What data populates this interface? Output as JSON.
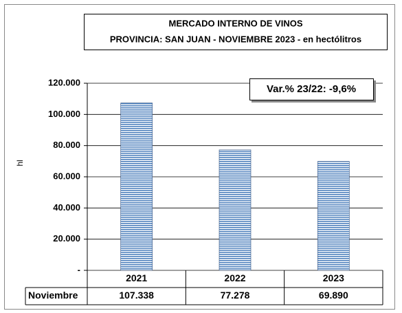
{
  "chart_data": {
    "type": "bar",
    "title": [
      "MERCADO INTERNO DE VINOS",
      "PROVINCIA: SAN JUAN - NOVIEMBRE 2023 - en hectólitros"
    ],
    "annotation": "Var.% 23/22: -9,6%",
    "y_label": "hl",
    "categories": [
      "2021",
      "2022",
      "2023"
    ],
    "series": [
      {
        "name": "Noviembre",
        "color": "#4f81bd",
        "values": [
          107338,
          77278,
          69890
        ],
        "value_labels": [
          "107.338",
          "77.278",
          "69.890"
        ]
      }
    ],
    "ylim": [
      0,
      120000
    ],
    "yticks": [
      {
        "value": 0,
        "label": "-"
      },
      {
        "value": 20000,
        "label": "20.000"
      },
      {
        "value": 40000,
        "label": "40.000"
      },
      {
        "value": 60000,
        "label": "60.000"
      },
      {
        "value": 80000,
        "label": "80.000"
      },
      {
        "value": 100000,
        "label": "100.000"
      },
      {
        "value": 120000,
        "label": "120.000"
      }
    ],
    "grid": true
  }
}
